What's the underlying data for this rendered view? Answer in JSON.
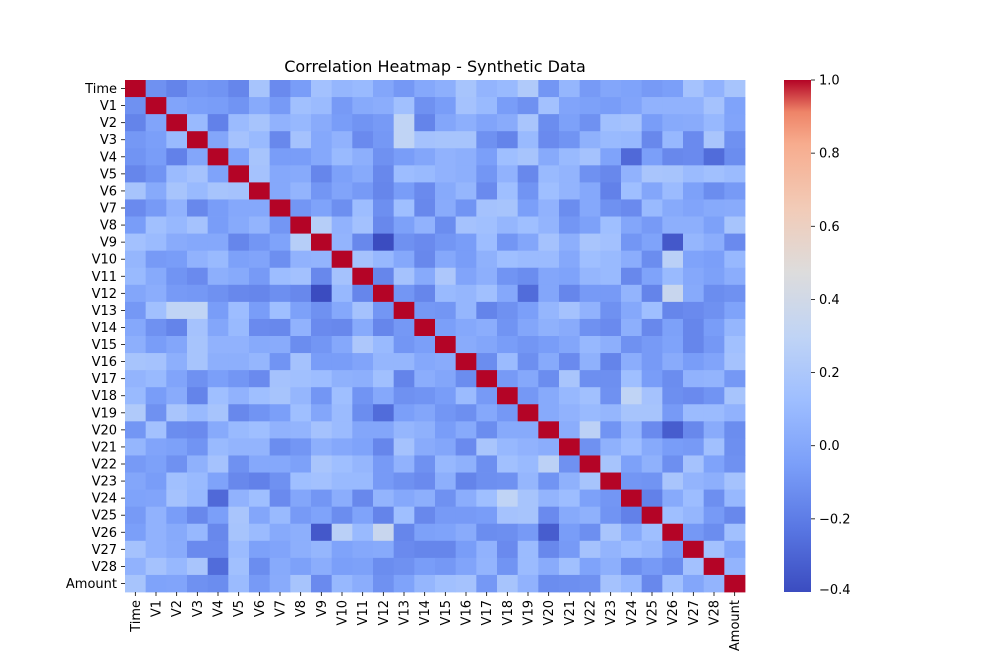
{
  "chart_data": {
    "type": "heatmap",
    "title": "Correlation Heatmap - Synthetic Data",
    "xlabel": "",
    "ylabel": "",
    "labels": [
      "Time",
      "V1",
      "V2",
      "V3",
      "V4",
      "V5",
      "V6",
      "V7",
      "V8",
      "V9",
      "V10",
      "V11",
      "V12",
      "V13",
      "V14",
      "V15",
      "V16",
      "V17",
      "V18",
      "V19",
      "V20",
      "V21",
      "V22",
      "V23",
      "V24",
      "V25",
      "V26",
      "V27",
      "V28",
      "Amount"
    ],
    "colormap": "coolwarm",
    "colorbar_range": [
      -0.4,
      1.0
    ],
    "colorbar_ticks": [
      -0.2,
      0.0,
      0.2,
      0.4,
      0.6,
      0.8,
      1.0
    ],
    "colorbar_tick_labels": [
      "−0.2",
      "0.0",
      "0.2",
      "0.4",
      "0.6",
      "0.8",
      "1.0"
    ],
    "notable_correlations": [
      {
        "a": "V9",
        "b": "V12",
        "value": -0.4
      },
      {
        "a": "V9",
        "b": "V26",
        "value": -0.35
      },
      {
        "a": "V20",
        "b": "V26",
        "value": -0.33
      },
      {
        "a": "V4",
        "b": "V24",
        "value": -0.28
      },
      {
        "a": "V4",
        "b": "V28",
        "value": -0.27
      },
      {
        "a": "V12",
        "b": "V19",
        "value": -0.27
      },
      {
        "a": "V12",
        "b": "V26",
        "value": 0.35
      },
      {
        "a": "V2",
        "b": "V13",
        "value": 0.3
      },
      {
        "a": "V3",
        "b": "V13",
        "value": 0.3
      },
      {
        "a": "V18",
        "b": "V24",
        "value": 0.3
      },
      {
        "a": "V20",
        "b": "V22",
        "value": 0.28
      },
      {
        "a": "V10",
        "b": "V26",
        "value": 0.27
      },
      {
        "a": "V11",
        "b": "V15",
        "value": 0.2
      },
      {
        "a": "Time",
        "b": "V19",
        "value": 0.22
      },
      {
        "a": "V8",
        "b": "V9",
        "value": 0.25
      }
    ]
  }
}
